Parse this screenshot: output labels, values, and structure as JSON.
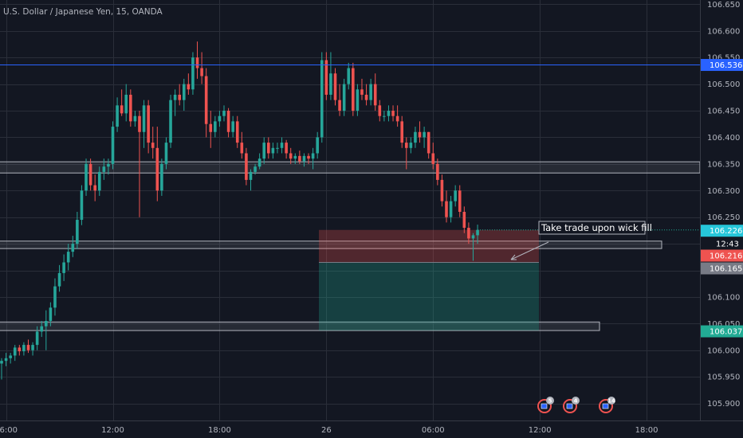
{
  "symbol": "U.S. Dollar / Japanese Yen, 15, OANDA",
  "chart_data": {
    "type": "candlestick",
    "y_axis": {
      "range": [
        105.868,
        106.658
      ],
      "ticks": [
        "106.650",
        "106.600",
        "106.550",
        "106.500",
        "106.450",
        "106.400",
        "106.350",
        "106.300",
        "106.250",
        "106.200",
        "106.150",
        "106.100",
        "106.050",
        "106.000",
        "105.950",
        "105.900"
      ]
    },
    "x_axis": {
      "ticks": [
        {
          "label": "06:00",
          "bar": 1
        },
        {
          "label": "12:00",
          "bar": 25
        },
        {
          "label": "18:00",
          "bar": 49
        },
        {
          "label": "26",
          "bar": 73
        },
        {
          "label": "06:00",
          "bar": 97
        },
        {
          "label": "12:00",
          "bar": 121
        },
        {
          "label": "18:00",
          "bar": 145
        }
      ]
    },
    "candles": [
      [
        105.975,
        105.985,
        105.945,
        105.98
      ],
      [
        105.98,
        105.995,
        105.97,
        105.985
      ],
      [
        105.985,
        105.995,
        105.975,
        105.99
      ],
      [
        105.99,
        106.01,
        105.98,
        106.005
      ],
      [
        106.005,
        106.01,
        105.99,
        105.998
      ],
      [
        105.998,
        106.015,
        105.99,
        106.01
      ],
      [
        106.01,
        106.02,
        105.995,
        106.0
      ],
      [
        106.0,
        106.015,
        105.99,
        106.01
      ],
      [
        106.01,
        106.045,
        106.0,
        106.035
      ],
      [
        106.035,
        106.055,
        106.025,
        106.045
      ],
      [
        106.045,
        106.075,
        106.0,
        106.055
      ],
      [
        106.055,
        106.09,
        106.045,
        106.08
      ],
      [
        106.08,
        106.135,
        106.065,
        106.12
      ],
      [
        106.12,
        106.16,
        106.11,
        106.145
      ],
      [
        106.145,
        106.18,
        106.13,
        106.165
      ],
      [
        106.165,
        106.2,
        106.15,
        106.185
      ],
      [
        106.185,
        106.215,
        106.175,
        106.2
      ],
      [
        106.2,
        106.26,
        106.19,
        106.245
      ],
      [
        106.245,
        106.31,
        106.235,
        106.3
      ],
      [
        106.3,
        106.36,
        106.29,
        106.35
      ],
      [
        106.35,
        106.36,
        106.3,
        106.31
      ],
      [
        106.31,
        106.33,
        106.28,
        106.3
      ],
      [
        106.3,
        106.345,
        106.29,
        106.335
      ],
      [
        106.335,
        106.36,
        106.32,
        106.345
      ],
      [
        106.345,
        106.36,
        106.33,
        106.35
      ],
      [
        106.35,
        106.43,
        106.34,
        106.42
      ],
      [
        106.42,
        106.475,
        106.41,
        106.46
      ],
      [
        106.46,
        106.49,
        106.44,
        106.445
      ],
      [
        106.445,
        106.5,
        106.43,
        106.48
      ],
      [
        106.48,
        106.49,
        106.42,
        106.43
      ],
      [
        106.43,
        106.45,
        106.42,
        106.44
      ],
      [
        106.44,
        106.45,
        106.25,
        106.41
      ],
      [
        106.41,
        106.47,
        106.38,
        106.46
      ],
      [
        106.46,
        106.47,
        106.37,
        106.39
      ],
      [
        106.39,
        106.42,
        106.36,
        106.38
      ],
      [
        106.38,
        106.42,
        106.28,
        106.3
      ],
      [
        106.3,
        106.36,
        106.29,
        106.35
      ],
      [
        106.35,
        106.4,
        106.34,
        106.39
      ],
      [
        106.39,
        106.48,
        106.38,
        106.47
      ],
      [
        106.47,
        106.49,
        106.44,
        106.48
      ],
      [
        106.48,
        106.5,
        106.46,
        106.47
      ],
      [
        106.47,
        106.51,
        106.45,
        106.5
      ],
      [
        106.5,
        106.52,
        106.48,
        106.49
      ],
      [
        106.49,
        106.56,
        106.48,
        106.55
      ],
      [
        106.55,
        106.58,
        106.51,
        106.53
      ],
      [
        106.53,
        106.56,
        106.5,
        106.515
      ],
      [
        106.515,
        106.53,
        106.4,
        106.425
      ],
      [
        106.425,
        106.45,
        106.38,
        106.41
      ],
      [
        106.41,
        106.44,
        106.4,
        106.43
      ],
      [
        106.43,
        106.45,
        106.42,
        106.44
      ],
      [
        106.44,
        106.46,
        106.43,
        106.45
      ],
      [
        106.45,
        106.455,
        106.4,
        106.41
      ],
      [
        106.41,
        106.44,
        106.4,
        106.43
      ],
      [
        106.43,
        106.44,
        106.38,
        106.39
      ],
      [
        106.39,
        106.41,
        106.36,
        106.37
      ],
      [
        106.37,
        106.38,
        106.31,
        106.32
      ],
      [
        106.32,
        106.34,
        106.3,
        106.335
      ],
      [
        106.335,
        106.35,
        106.33,
        106.345
      ],
      [
        106.345,
        106.37,
        106.34,
        106.36
      ],
      [
        106.36,
        106.4,
        106.35,
        106.39
      ],
      [
        106.39,
        106.4,
        106.36,
        106.37
      ],
      [
        106.37,
        106.39,
        106.36,
        106.38
      ],
      [
        106.38,
        106.39,
        106.37,
        106.38
      ],
      [
        106.38,
        106.4,
        106.37,
        106.39
      ],
      [
        106.39,
        106.395,
        106.36,
        106.37
      ],
      [
        106.37,
        106.38,
        106.35,
        106.36
      ],
      [
        106.36,
        106.37,
        106.35,
        106.365
      ],
      [
        106.365,
        106.375,
        106.35,
        106.355
      ],
      [
        106.355,
        106.37,
        106.345,
        106.365
      ],
      [
        106.365,
        106.37,
        106.35,
        106.36
      ],
      [
        106.36,
        106.38,
        106.34,
        106.37
      ],
      [
        106.37,
        106.41,
        106.36,
        106.4
      ],
      [
        106.4,
        106.56,
        106.39,
        106.545
      ],
      [
        106.545,
        106.56,
        106.47,
        106.48
      ],
      [
        106.48,
        106.56,
        106.47,
        106.52
      ],
      [
        106.52,
        106.53,
        106.46,
        106.47
      ],
      [
        106.47,
        106.5,
        106.44,
        106.45
      ],
      [
        106.45,
        106.51,
        106.44,
        106.5
      ],
      [
        106.5,
        106.54,
        106.49,
        106.53
      ],
      [
        106.53,
        106.54,
        106.44,
        106.45
      ],
      [
        106.45,
        106.5,
        106.44,
        106.49
      ],
      [
        106.49,
        106.51,
        106.47,
        106.48
      ],
      [
        106.48,
        106.5,
        106.46,
        106.47
      ],
      [
        106.47,
        106.51,
        106.46,
        106.5
      ],
      [
        106.5,
        106.52,
        106.45,
        106.46
      ],
      [
        106.46,
        106.47,
        106.43,
        106.44
      ],
      [
        106.44,
        106.45,
        106.43,
        106.44
      ],
      [
        106.44,
        106.46,
        106.43,
        106.45
      ],
      [
        106.45,
        106.46,
        106.43,
        106.44
      ],
      [
        106.44,
        106.46,
        106.42,
        106.43
      ],
      [
        106.43,
        106.44,
        106.38,
        106.39
      ],
      [
        106.39,
        106.4,
        106.34,
        106.38
      ],
      [
        106.38,
        106.4,
        106.37,
        106.39
      ],
      [
        106.39,
        106.42,
        106.38,
        106.41
      ],
      [
        106.41,
        106.43,
        106.39,
        106.4
      ],
      [
        106.4,
        106.42,
        106.38,
        106.41
      ],
      [
        106.41,
        106.41,
        106.36,
        106.37
      ],
      [
        106.37,
        106.39,
        106.34,
        106.35
      ],
      [
        106.35,
        106.36,
        106.31,
        106.32
      ],
      [
        106.32,
        106.33,
        106.27,
        106.28
      ],
      [
        106.28,
        106.3,
        106.24,
        106.25
      ],
      [
        106.25,
        106.29,
        106.24,
        106.28
      ],
      [
        106.28,
        106.31,
        106.27,
        106.3
      ],
      [
        106.3,
        106.31,
        106.25,
        106.26
      ],
      [
        106.26,
        106.27,
        106.22,
        106.23
      ],
      [
        106.23,
        106.24,
        106.2,
        106.21
      ],
      [
        106.21,
        106.22,
        106.168,
        106.216
      ],
      [
        106.216,
        106.236,
        106.2,
        106.226
      ]
    ],
    "levels": [
      {
        "price": 106.536,
        "label": "106.536",
        "color": "#2962ff",
        "label_color": "#2962ff"
      },
      {
        "price": 106.226,
        "label": "106.226",
        "color": "#22ab94",
        "label_color": "#26c6da"
      },
      {
        "price": 106.216,
        "label": "106.216",
        "color": "#ef5350",
        "label_color": "#ef5350"
      },
      {
        "price": 106.165,
        "label": "106.165",
        "color": "#787b86",
        "label_color": "#787b86"
      },
      {
        "price": 106.037,
        "label": "106.037",
        "color": "#22ab94",
        "label_color": "#22ab94"
      }
    ],
    "countdown": "12:43",
    "annotation": "Take trade upon wick fill",
    "events": [
      "5",
      "4",
      "14"
    ]
  }
}
